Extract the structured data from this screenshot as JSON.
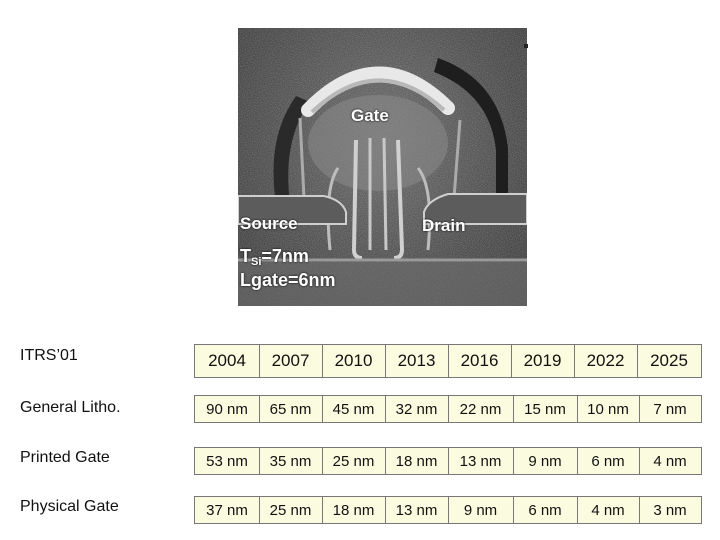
{
  "image": {
    "labels": {
      "gate": "Gate",
      "source": "Source",
      "drain": "Drain",
      "tsi_prefix": "T",
      "tsi_sub": "Si",
      "tsi_value": "=7nm",
      "lgate": "Lgate=6nm"
    }
  },
  "table": {
    "rows": [
      {
        "label": "ITRS’01",
        "cells": [
          "2004",
          "2007",
          "2010",
          "2013",
          "2016",
          "2019",
          "2022",
          "2025"
        ]
      },
      {
        "label": "General Litho.",
        "cells": [
          "90 nm",
          "65 nm",
          "45 nm",
          "32 nm",
          "22 nm",
          "15 nm",
          "10 nm",
          "7 nm"
        ]
      },
      {
        "label": "Printed Gate",
        "cells": [
          "53 nm",
          "35 nm",
          "25 nm",
          "18 nm",
          "13 nm",
          "9 nm",
          "6 nm",
          "4 nm"
        ]
      },
      {
        "label": "Physical Gate",
        "cells": [
          "37 nm",
          "25 nm",
          "18 nm",
          "13 nm",
          "9 nm",
          "6 nm",
          "4 nm",
          "3 nm"
        ]
      }
    ]
  }
}
